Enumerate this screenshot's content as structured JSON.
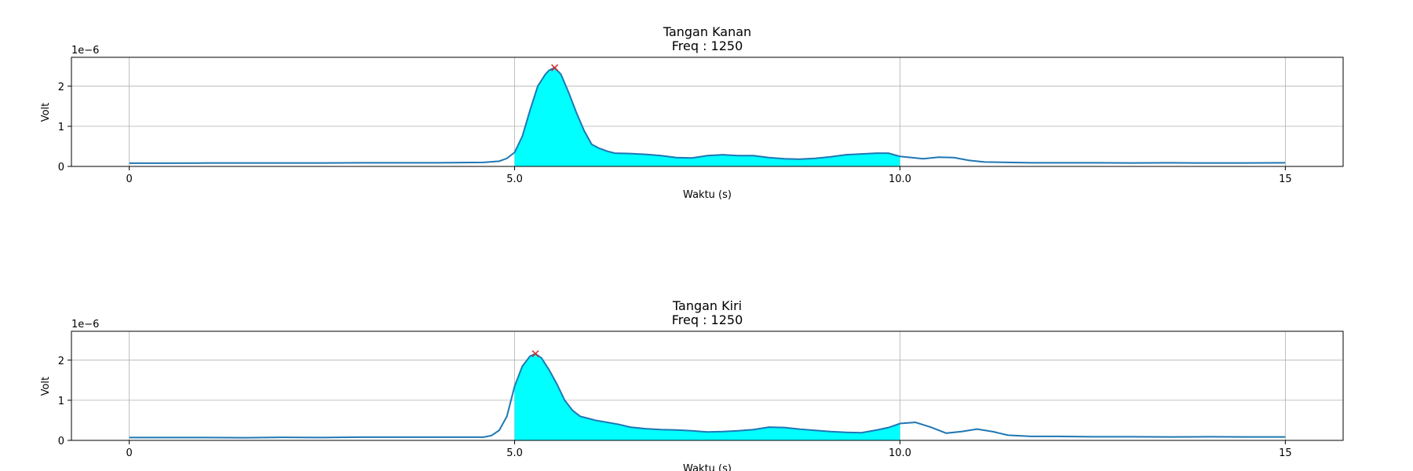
{
  "chart_data": [
    {
      "type": "line",
      "title": "Tangan Kanan",
      "subtitle": "Freq : 1250",
      "xlabel": "Waktu (s)",
      "ylabel": "Volt",
      "y_scale_label": "1e−6",
      "xlim": [
        -0.75,
        15.75
      ],
      "ylim": [
        0,
        2.72
      ],
      "x_ticks": [
        0,
        5,
        10,
        15
      ],
      "x_tick_labels": [
        "0",
        "5.0",
        "10.0",
        "15"
      ],
      "y_ticks": [
        0,
        1,
        2
      ],
      "y_tick_labels": [
        "0",
        "1",
        "2"
      ],
      "grid": true,
      "line_color": "#1f77b4",
      "fill_color": "#00ffff",
      "marker_color": "#d62728",
      "fill_range": [
        5.0,
        10.0
      ],
      "peak": {
        "x": 5.52,
        "y": 2.46
      },
      "series": [
        {
          "x": [
            0,
            0.5,
            1,
            1.5,
            2,
            2.5,
            3,
            3.5,
            4,
            4.3,
            4.6,
            4.8,
            4.9,
            5.0,
            5.1,
            5.2,
            5.3,
            5.4,
            5.45,
            5.52,
            5.6,
            5.7,
            5.8,
            5.9,
            6.0,
            6.1,
            6.2,
            6.3,
            6.5,
            6.7,
            6.9,
            7.1,
            7.3,
            7.5,
            7.7,
            7.9,
            8.1,
            8.3,
            8.5,
            8.7,
            8.9,
            9.1,
            9.3,
            9.5,
            9.7,
            9.85,
            10.0,
            10.15,
            10.3,
            10.5,
            10.7,
            10.9,
            11.1,
            11.4,
            11.7,
            12,
            12.5,
            13,
            13.5,
            14,
            14.5,
            15
          ],
          "y": [
            0.08,
            0.08,
            0.085,
            0.085,
            0.085,
            0.085,
            0.09,
            0.09,
            0.09,
            0.095,
            0.1,
            0.13,
            0.2,
            0.35,
            0.75,
            1.4,
            2.0,
            2.3,
            2.4,
            2.46,
            2.3,
            1.85,
            1.35,
            0.9,
            0.55,
            0.45,
            0.38,
            0.33,
            0.32,
            0.3,
            0.27,
            0.22,
            0.21,
            0.27,
            0.29,
            0.27,
            0.27,
            0.22,
            0.19,
            0.18,
            0.2,
            0.24,
            0.29,
            0.31,
            0.33,
            0.33,
            0.25,
            0.22,
            0.19,
            0.23,
            0.22,
            0.15,
            0.11,
            0.1,
            0.09,
            0.09,
            0.09,
            0.085,
            0.09,
            0.085,
            0.085,
            0.09
          ]
        }
      ]
    },
    {
      "type": "line",
      "title": "Tangan Kiri",
      "subtitle": "Freq :  1250",
      "xlabel": "Waktu (s)",
      "ylabel": "Volt",
      "y_scale_label": "1e−6",
      "xlim": [
        -0.75,
        15.75
      ],
      "ylim": [
        0,
        2.72
      ],
      "x_ticks": [
        0,
        5,
        10,
        15
      ],
      "x_tick_labels": [
        "0",
        "5.0",
        "10.0",
        "15"
      ],
      "y_ticks": [
        0,
        1,
        2
      ],
      "y_tick_labels": [
        "0",
        "1",
        "2"
      ],
      "grid": true,
      "line_color": "#1f77b4",
      "fill_color": "#00ffff",
      "marker_color": "#d62728",
      "fill_range": [
        5.0,
        10.0
      ],
      "peak": {
        "x": 5.27,
        "y": 2.16
      },
      "series": [
        {
          "x": [
            0,
            0.5,
            1,
            1.5,
            2,
            2.5,
            3,
            3.5,
            4,
            4.3,
            4.6,
            4.7,
            4.8,
            4.9,
            5.0,
            5.1,
            5.2,
            5.27,
            5.35,
            5.45,
            5.55,
            5.65,
            5.75,
            5.85,
            5.95,
            6.05,
            6.2,
            6.35,
            6.5,
            6.7,
            6.9,
            7.1,
            7.3,
            7.5,
            7.7,
            7.9,
            8.1,
            8.3,
            8.5,
            8.7,
            8.9,
            9.1,
            9.3,
            9.5,
            9.7,
            9.85,
            10.0,
            10.2,
            10.4,
            10.6,
            10.8,
            11.0,
            11.2,
            11.4,
            11.7,
            12,
            12.5,
            13,
            13.5,
            14,
            14.5,
            15
          ],
          "y": [
            0.07,
            0.07,
            0.07,
            0.065,
            0.075,
            0.07,
            0.08,
            0.08,
            0.08,
            0.08,
            0.08,
            0.12,
            0.25,
            0.6,
            1.35,
            1.85,
            2.1,
            2.16,
            2.05,
            1.75,
            1.4,
            1.0,
            0.75,
            0.6,
            0.55,
            0.5,
            0.45,
            0.4,
            0.33,
            0.29,
            0.27,
            0.26,
            0.24,
            0.21,
            0.22,
            0.24,
            0.27,
            0.33,
            0.32,
            0.28,
            0.25,
            0.22,
            0.2,
            0.19,
            0.26,
            0.32,
            0.42,
            0.45,
            0.33,
            0.18,
            0.22,
            0.28,
            0.22,
            0.13,
            0.1,
            0.1,
            0.09,
            0.09,
            0.085,
            0.09,
            0.085,
            0.085
          ]
        }
      ]
    }
  ]
}
